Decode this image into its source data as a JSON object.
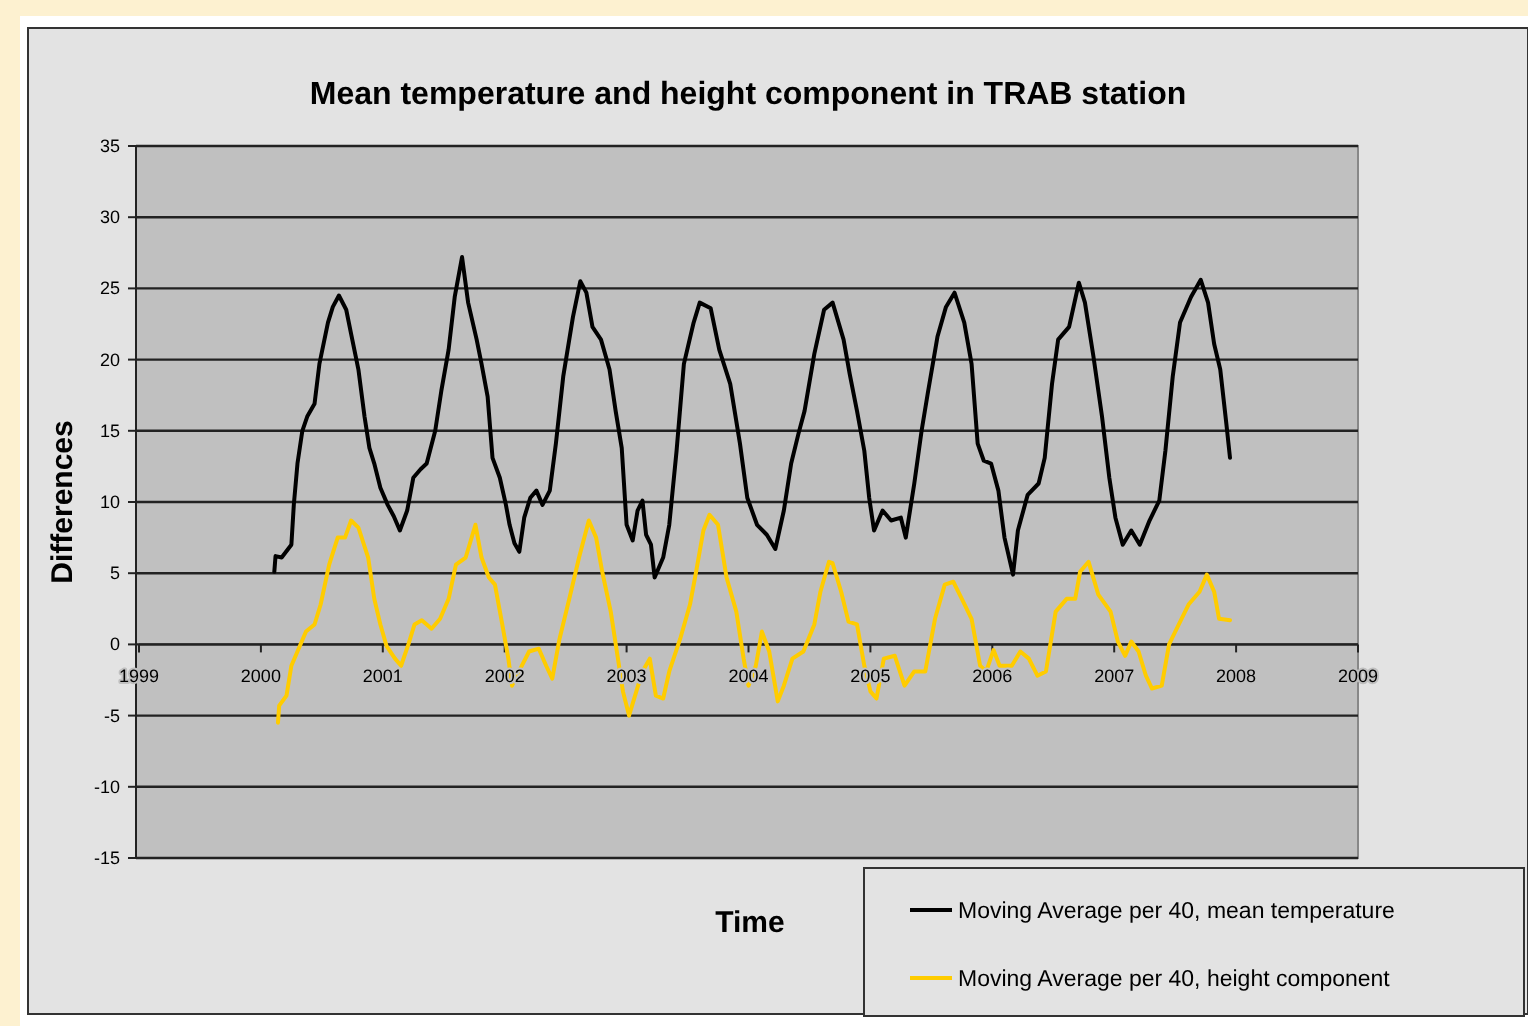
{
  "chart_data": {
    "type": "line",
    "title": "Mean temperature and height component in TRAB station",
    "xlabel": "Time",
    "ylabel": "Differences",
    "xlim": [
      1999,
      2009
    ],
    "xticks": [
      1999,
      2000,
      2001,
      2002,
      2003,
      2004,
      2005,
      2006,
      2007,
      2008,
      2009
    ],
    "ylim": [
      -15,
      35
    ],
    "yticks": [
      -15,
      -10,
      -5,
      0,
      5,
      10,
      15,
      20,
      25,
      30,
      35
    ],
    "grid": "y",
    "legend": "bottom right",
    "marker": "none",
    "line_style": "solid",
    "series": [
      {
        "name": "Moving Average per 40, mean temperature",
        "color": "#000000",
        "x": [
          2000.11,
          2000.12,
          2000.17,
          2000.25,
          2000.27,
          2000.3,
          2000.34,
          2000.38,
          2000.44,
          2000.48,
          2000.55,
          2000.59,
          2000.64,
          2000.7,
          2000.74,
          2000.8,
          2000.85,
          2000.89,
          2000.93,
          2000.98,
          2001.04,
          2001.09,
          2001.14,
          2001.2,
          2001.25,
          2001.31,
          2001.36,
          2001.43,
          2001.48,
          2001.54,
          2001.59,
          2001.65,
          2001.7,
          2001.77,
          2001.81,
          2001.86,
          2001.9,
          2001.96,
          2002.01,
          2002.04,
          2002.08,
          2002.12,
          2002.16,
          2002.21,
          2002.26,
          2002.31,
          2002.37,
          2002.42,
          2002.48,
          2002.56,
          2002.62,
          2002.67,
          2002.72,
          2002.79,
          2002.86,
          2002.91,
          2002.96,
          2003.0,
          2003.05,
          2003.09,
          2003.13,
          2003.16,
          2003.2,
          2003.23,
          2003.3,
          2003.35,
          2003.41,
          2003.47,
          2003.55,
          2003.6,
          2003.69,
          2003.76,
          2003.85,
          2003.93,
          2003.99,
          2004.07,
          2004.15,
          2004.22,
          2004.29,
          2004.35,
          2004.41,
          2004.46,
          2004.54,
          2004.62,
          2004.69,
          2004.78,
          2004.83,
          2004.89,
          2004.95,
          2004.99,
          2005.03,
          2005.1,
          2005.17,
          2005.25,
          2005.29,
          2005.36,
          2005.42,
          2005.47,
          2005.55,
          2005.62,
          2005.69,
          2005.77,
          2005.83,
          2005.88,
          2005.93,
          2005.99,
          2006.05,
          2006.1,
          2006.17,
          2006.21,
          2006.29,
          2006.38,
          2006.43,
          2006.49,
          2006.54,
          2006.63,
          2006.71,
          2006.76,
          2006.83,
          2006.9,
          2006.96,
          2007.01,
          2007.07,
          2007.14,
          2007.21,
          2007.29,
          2007.37,
          2007.42,
          2007.48,
          2007.54,
          2007.63,
          2007.71,
          2007.77,
          2007.82,
          2007.87,
          2007.92,
          2007.95
        ],
        "values": [
          5.1,
          6.2,
          6.1,
          7.0,
          9.8,
          12.7,
          15.0,
          16.0,
          16.9,
          19.7,
          22.6,
          23.7,
          24.5,
          23.5,
          21.8,
          19.3,
          16.0,
          13.8,
          12.7,
          11.0,
          9.8,
          9.0,
          8.0,
          9.4,
          11.7,
          12.3,
          12.7,
          15.0,
          17.8,
          20.7,
          24.4,
          27.2,
          24.0,
          21.4,
          19.7,
          17.4,
          13.1,
          11.7,
          9.8,
          8.4,
          7.1,
          6.5,
          8.9,
          10.3,
          10.8,
          9.8,
          10.8,
          14.1,
          18.8,
          23.0,
          25.5,
          24.7,
          22.3,
          21.4,
          19.3,
          16.4,
          13.8,
          8.4,
          7.3,
          9.4,
          10.1,
          7.7,
          7.0,
          4.7,
          6.1,
          8.4,
          13.6,
          19.7,
          22.6,
          24.0,
          23.6,
          20.7,
          18.3,
          14.1,
          10.3,
          8.4,
          7.7,
          6.7,
          9.4,
          12.7,
          14.8,
          16.4,
          20.4,
          23.5,
          24.0,
          21.4,
          19.0,
          16.4,
          13.6,
          10.3,
          8.0,
          9.4,
          8.7,
          8.9,
          7.5,
          11.3,
          15.0,
          17.6,
          21.6,
          23.7,
          24.7,
          22.6,
          19.7,
          14.1,
          12.9,
          12.7,
          10.8,
          7.5,
          4.9,
          8.0,
          10.5,
          11.3,
          13.1,
          18.3,
          21.4,
          22.3,
          25.4,
          24.0,
          20.2,
          16.0,
          11.7,
          8.9,
          7.0,
          8.0,
          7.0,
          8.7,
          10.1,
          13.6,
          18.8,
          22.6,
          24.4,
          25.6,
          24.0,
          21.1,
          19.3,
          15.5,
          13.1
        ]
      },
      {
        "name": "Moving Average  per 40, height component",
        "color": "#ffcc00",
        "x": [
          2000.14,
          2000.15,
          2000.21,
          2000.25,
          2000.3,
          2000.37,
          2000.44,
          2000.49,
          2000.56,
          2000.63,
          2000.69,
          2000.74,
          2000.8,
          2000.88,
          2000.93,
          2000.98,
          2001.03,
          2001.1,
          2001.15,
          2001.21,
          2001.26,
          2001.32,
          2001.4,
          2001.47,
          2001.54,
          2001.6,
          2001.68,
          2001.76,
          2001.81,
          2001.87,
          2001.92,
          2001.98,
          2002.03,
          2002.06,
          2002.14,
          2002.2,
          2002.28,
          2002.34,
          2002.39,
          2002.45,
          2002.53,
          2002.61,
          2002.69,
          2002.75,
          2002.8,
          2002.87,
          2002.92,
          2002.97,
          2003.02,
          2003.08,
          2003.13,
          2003.19,
          2003.24,
          2003.3,
          2003.35,
          2003.44,
          2003.52,
          2003.57,
          2003.63,
          2003.68,
          2003.75,
          2003.82,
          2003.9,
          2003.96,
          2004.0,
          2004.06,
          2004.11,
          2004.17,
          2004.24,
          2004.29,
          2004.36,
          2004.45,
          2004.54,
          2004.59,
          2004.66,
          2004.69,
          2004.76,
          2004.82,
          2004.89,
          2004.95,
          2005.0,
          2005.05,
          2005.11,
          2005.2,
          2005.28,
          2005.36,
          2005.45,
          2005.53,
          2005.61,
          2005.68,
          2005.75,
          2005.83,
          2005.9,
          2005.95,
          2006.01,
          2006.06,
          2006.16,
          2006.23,
          2006.3,
          2006.37,
          2006.44,
          2006.52,
          2006.61,
          2006.68,
          2006.72,
          2006.79,
          2006.87,
          2006.97,
          2007.03,
          2007.09,
          2007.14,
          2007.2,
          2007.26,
          2007.31,
          2007.39,
          2007.45,
          2007.53,
          2007.61,
          2007.7,
          2007.76,
          2007.82,
          2007.86,
          2007.95
        ],
        "values": [
          -5.5,
          -4.3,
          -3.6,
          -1.5,
          -0.5,
          0.9,
          1.4,
          2.8,
          5.6,
          7.5,
          7.5,
          8.7,
          8.2,
          6.1,
          3.2,
          1.4,
          -0.1,
          -1.0,
          -1.5,
          0.0,
          1.4,
          1.7,
          1.1,
          1.8,
          3.2,
          5.6,
          6.1,
          8.4,
          6.1,
          4.7,
          4.2,
          1.4,
          -1.0,
          -2.9,
          -1.5,
          -0.5,
          -0.3,
          -1.5,
          -2.4,
          0.4,
          3.2,
          6.1,
          8.7,
          7.5,
          5.1,
          2.3,
          -0.5,
          -3.3,
          -5.0,
          -3.3,
          -1.9,
          -1.0,
          -3.6,
          -3.8,
          -1.9,
          0.4,
          2.8,
          5.1,
          8.0,
          9.1,
          8.4,
          4.7,
          2.3,
          -1.0,
          -2.9,
          -1.5,
          0.9,
          -0.5,
          -4.0,
          -2.9,
          -1.0,
          -0.5,
          1.4,
          3.7,
          5.8,
          5.7,
          3.7,
          1.6,
          1.4,
          -1.5,
          -3.3,
          -3.8,
          -1.0,
          -0.8,
          -2.9,
          -1.9,
          -1.9,
          1.8,
          4.2,
          4.4,
          3.2,
          1.8,
          -1.5,
          -1.9,
          -0.4,
          -1.5,
          -1.5,
          -0.5,
          -1.0,
          -2.2,
          -1.9,
          2.3,
          3.2,
          3.2,
          5.1,
          5.8,
          3.5,
          2.3,
          0.2,
          -0.8,
          0.2,
          -0.5,
          -2.2,
          -3.1,
          -2.9,
          0.0,
          1.4,
          2.8,
          3.7,
          4.9,
          3.7,
          1.8,
          1.7
        ]
      }
    ]
  }
}
